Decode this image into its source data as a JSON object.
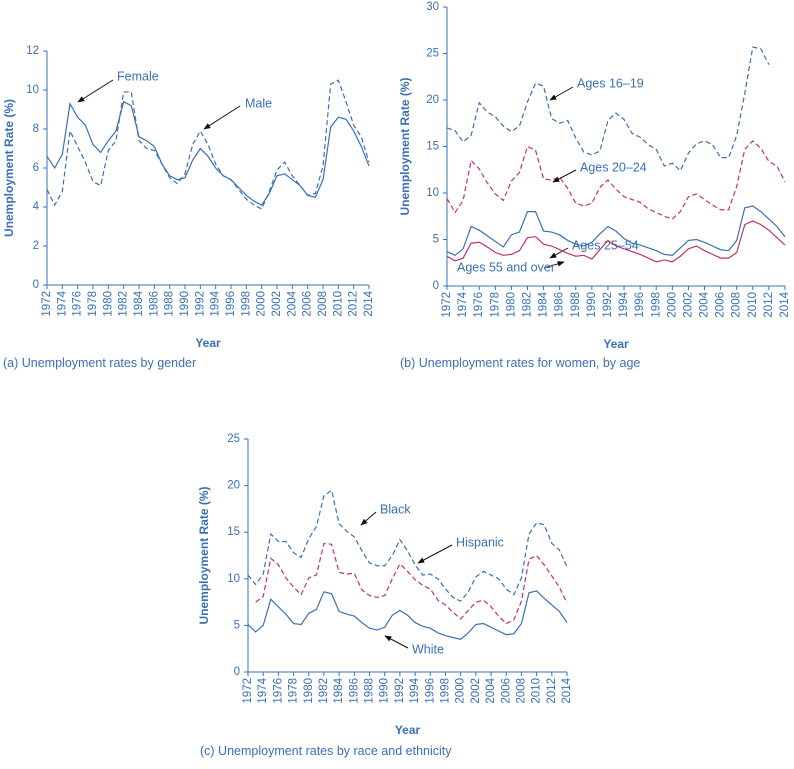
{
  "chart_data": [
    {
      "type": "line",
      "y_label": "Unemployment Rate (%)",
      "x_label": "Year",
      "caption": "(a) Unemployment rates by gender",
      "xlim": [
        1972,
        2014
      ],
      "ylim": [
        0,
        12
      ],
      "xticks": [
        1972,
        1974,
        1976,
        1978,
        1980,
        1982,
        1984,
        1986,
        1988,
        1990,
        1992,
        1994,
        1996,
        1998,
        2000,
        2002,
        2004,
        2006,
        2008,
        2010,
        2012,
        2014
      ],
      "yticks": [
        0,
        2,
        4,
        6,
        8,
        10,
        12
      ],
      "x": [
        1972,
        1973,
        1974,
        1975,
        1976,
        1977,
        1978,
        1979,
        1980,
        1981,
        1982,
        1983,
        1984,
        1985,
        1986,
        1987,
        1988,
        1989,
        1990,
        1991,
        1992,
        1993,
        1994,
        1995,
        1996,
        1997,
        1998,
        1999,
        2000,
        2001,
        2002,
        2003,
        2004,
        2005,
        2006,
        2007,
        2008,
        2009,
        2010,
        2011,
        2012,
        2013,
        2014
      ],
      "series": [
        {
          "name": "Female",
          "color": "#3a70b5",
          "style": "solid",
          "values": [
            6.6,
            6.0,
            6.7,
            9.3,
            8.6,
            8.2,
            7.2,
            6.8,
            7.4,
            7.9,
            9.4,
            9.2,
            7.6,
            7.4,
            7.1,
            6.2,
            5.6,
            5.4,
            5.5,
            6.4,
            7.0,
            6.6,
            6.0,
            5.6,
            5.4,
            5.0,
            4.6,
            4.3,
            4.1,
            4.7,
            5.6,
            5.7,
            5.4,
            5.1,
            4.6,
            4.5,
            5.4,
            8.1,
            8.6,
            8.5,
            7.9,
            7.1,
            6.1
          ]
        },
        {
          "name": "Male",
          "color": "#3a70b5",
          "style": "dashed",
          "values": [
            4.9,
            4.1,
            4.8,
            7.9,
            7.1,
            6.3,
            5.3,
            5.1,
            6.9,
            7.4,
            9.9,
            9.9,
            7.4,
            7.0,
            6.9,
            6.2,
            5.5,
            5.2,
            5.7,
            7.2,
            7.9,
            7.2,
            6.2,
            5.6,
            5.4,
            4.9,
            4.4,
            4.1,
            3.9,
            4.8,
            5.9,
            6.3,
            5.6,
            5.1,
            4.6,
            4.7,
            6.1,
            10.3,
            10.5,
            9.4,
            8.2,
            7.6,
            6.3
          ]
        }
      ]
    },
    {
      "type": "line",
      "y_label": "Unemployment Rate (%)",
      "x_label": "Year",
      "caption": "(b) Unemployment rates for women, by age",
      "xlim": [
        1972,
        2014
      ],
      "ylim": [
        0,
        30
      ],
      "xticks": [
        1972,
        1974,
        1976,
        1978,
        1980,
        1982,
        1984,
        1986,
        1988,
        1990,
        1992,
        1994,
        1996,
        1998,
        2000,
        2002,
        2004,
        2006,
        2008,
        2010,
        2012,
        2014
      ],
      "yticks": [
        0,
        5,
        10,
        15,
        20,
        25,
        30
      ],
      "x": [
        1972,
        1973,
        1974,
        1975,
        1976,
        1977,
        1978,
        1979,
        1980,
        1981,
        1982,
        1983,
        1984,
        1985,
        1986,
        1987,
        1988,
        1989,
        1990,
        1991,
        1992,
        1993,
        1994,
        1995,
        1996,
        1997,
        1998,
        1999,
        2000,
        2001,
        2002,
        2003,
        2004,
        2005,
        2006,
        2007,
        2008,
        2009,
        2010,
        2011,
        2012,
        2013,
        2014
      ],
      "series": [
        {
          "name": "Ages 16–19",
          "color": "#3a70b5",
          "style": "dashed",
          "values": [
            17.0,
            16.7,
            15.5,
            16.2,
            19.7,
            18.7,
            18.2,
            17.2,
            16.6,
            17.2,
            19.8,
            21.8,
            21.5,
            18.0,
            17.5,
            17.8,
            15.9,
            14.4,
            14.1,
            14.5,
            17.8,
            18.6,
            17.9,
            16.4,
            16.0,
            15.2,
            14.7,
            12.9,
            13.2,
            12.4,
            14.3,
            15.3,
            15.6,
            15.2,
            13.8,
            13.8,
            16.2,
            20.7,
            25.7,
            25.5,
            23.8,
            null,
            null
          ]
        },
        {
          "name": "Ages 20–24",
          "color": "#c2326e",
          "style": "dashed",
          "values": [
            9.4,
            7.9,
            9.2,
            13.5,
            12.6,
            11.1,
            9.9,
            9.2,
            11.3,
            12.2,
            15.0,
            14.6,
            11.5,
            11.4,
            11.7,
            10.5,
            8.9,
            8.6,
            8.9,
            10.6,
            11.4,
            10.4,
            9.6,
            9.3,
            9.0,
            8.3,
            7.9,
            7.5,
            7.2,
            8.0,
            9.6,
            9.9,
            9.3,
            8.7,
            8.2,
            8.2,
            10.7,
            14.7,
            15.6,
            14.8,
            13.4,
            12.9,
            11.2
          ]
        },
        {
          "name": "Ages 25–54",
          "color": "#3a70b5",
          "style": "solid",
          "values": [
            3.7,
            3.3,
            4.0,
            6.4,
            6.0,
            5.4,
            4.8,
            4.2,
            5.5,
            5.8,
            8.0,
            8.0,
            5.9,
            5.8,
            5.5,
            4.9,
            4.5,
            4.3,
            4.7,
            5.6,
            6.4,
            5.9,
            5.1,
            4.6,
            4.4,
            4.1,
            3.8,
            3.4,
            3.3,
            4.1,
            4.9,
            5.0,
            4.7,
            4.3,
            3.9,
            3.8,
            4.9,
            8.4,
            8.6,
            8.0,
            7.2,
            6.4,
            5.3
          ]
        },
        {
          "name": "Ages 55 and over",
          "color": "#c2326e",
          "style": "solid",
          "values": [
            3.2,
            2.7,
            3.0,
            4.6,
            4.7,
            4.2,
            3.6,
            3.3,
            3.4,
            3.8,
            5.2,
            5.3,
            4.5,
            4.3,
            3.9,
            3.5,
            3.2,
            3.3,
            2.9,
            3.9,
            4.9,
            4.3,
            4.0,
            3.7,
            3.4,
            3.0,
            2.6,
            2.8,
            2.6,
            3.2,
            4.0,
            4.3,
            3.8,
            3.4,
            3.0,
            3.0,
            3.6,
            6.6,
            7.0,
            6.6,
            6.0,
            5.2,
            4.4
          ]
        }
      ]
    },
    {
      "type": "line",
      "y_label": "Unemployment Rate (%)",
      "x_label": "Year",
      "caption": "(c) Unemployment rates by race and ethnicity",
      "xlim": [
        1972,
        2014
      ],
      "ylim": [
        0,
        25
      ],
      "xticks": [
        1972,
        1974,
        1976,
        1978,
        1980,
        1982,
        1984,
        1986,
        1988,
        1990,
        1992,
        1994,
        1996,
        1998,
        2000,
        2002,
        2004,
        2006,
        2008,
        2010,
        2012,
        2014
      ],
      "yticks": [
        0,
        5,
        10,
        15,
        20,
        25
      ],
      "x": [
        1972,
        1973,
        1974,
        1975,
        1976,
        1977,
        1978,
        1979,
        1980,
        1981,
        1982,
        1983,
        1984,
        1985,
        1986,
        1987,
        1988,
        1989,
        1990,
        1991,
        1992,
        1993,
        1994,
        1995,
        1996,
        1997,
        1998,
        1999,
        2000,
        2001,
        2002,
        2003,
        2004,
        2005,
        2006,
        2007,
        2008,
        2009,
        2010,
        2011,
        2012,
        2013,
        2014
      ],
      "series": [
        {
          "name": "Black",
          "color": "#3a70b5",
          "style": "dashed",
          "values": [
            10.4,
            9.4,
            10.5,
            14.8,
            14.0,
            14.0,
            12.8,
            12.3,
            14.3,
            15.6,
            18.9,
            19.5,
            15.9,
            15.1,
            14.5,
            13.0,
            11.7,
            11.4,
            11.4,
            12.5,
            14.2,
            13.0,
            11.5,
            10.4,
            10.5,
            10.0,
            8.9,
            8.0,
            7.6,
            8.6,
            10.2,
            10.8,
            10.4,
            10.0,
            8.9,
            8.3,
            10.1,
            14.8,
            16.0,
            15.8,
            13.8,
            13.1,
            11.3
          ]
        },
        {
          "name": "Hispanic",
          "color": "#c2326e",
          "style": "dashed",
          "values": [
            null,
            7.5,
            8.1,
            12.2,
            11.5,
            10.1,
            9.1,
            8.3,
            10.1,
            10.4,
            13.8,
            13.7,
            10.7,
            10.5,
            10.6,
            8.8,
            8.2,
            8.0,
            8.2,
            10.0,
            11.6,
            10.8,
            9.9,
            9.3,
            8.9,
            7.7,
            7.2,
            6.4,
            5.7,
            6.6,
            7.5,
            7.7,
            7.0,
            6.0,
            5.2,
            5.6,
            7.6,
            12.1,
            12.5,
            11.5,
            10.3,
            9.1,
            7.4
          ]
        },
        {
          "name": "White",
          "color": "#3a70b5",
          "style": "solid",
          "values": [
            5.1,
            4.3,
            5.0,
            7.8,
            7.0,
            6.2,
            5.2,
            5.1,
            6.3,
            6.7,
            8.6,
            8.4,
            6.5,
            6.2,
            6.0,
            5.3,
            4.7,
            4.5,
            4.8,
            6.1,
            6.6,
            6.1,
            5.3,
            4.9,
            4.7,
            4.2,
            3.9,
            3.7,
            3.5,
            4.2,
            5.1,
            5.2,
            4.8,
            4.4,
            4.0,
            4.1,
            5.2,
            8.5,
            8.7,
            7.9,
            7.2,
            6.5,
            5.3
          ]
        }
      ]
    }
  ]
}
